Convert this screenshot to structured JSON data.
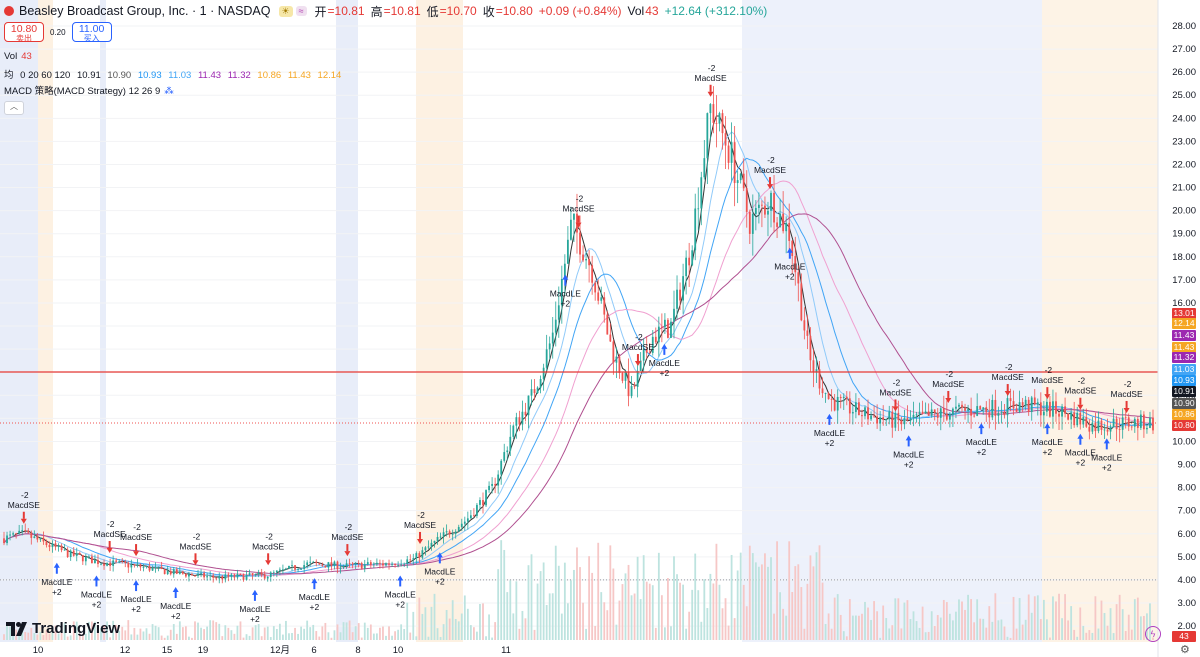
{
  "header": {
    "symbol": "Beasley Broadcast Group, Inc. · 1 · NASDAQ",
    "badge1": "☀",
    "badge2": "≈",
    "open_label": "开",
    "open": "=10.81",
    "high_label": "高",
    "high": "=10.81",
    "low_label": "低",
    "low": "=10.70",
    "close_label": "收",
    "close": "=10.80",
    "change": "+0.09 (+0.84%)",
    "vol_label": "Vol",
    "vol_value": "43",
    "vol_change": "+12.64 (+312.10%)"
  },
  "trade": {
    "sell_price": "10.80",
    "sell_label": "卖出",
    "spread": "0.20",
    "buy_price": "11.00",
    "buy_label": "买入"
  },
  "indicators": {
    "vol_label": "Vol",
    "vol_value": "43",
    "ma_label": "均",
    "ma_params": "0 20 60 120",
    "ma_values": [
      "10.91",
      "10.90",
      "10.93",
      "11.03",
      "11.43",
      "11.32",
      "10.86",
      "11.43",
      "12.14"
    ],
    "macd_label": "MACD 策略(MACD Strategy) 12 26 9"
  },
  "collapse_icon": "chevron-up-icon",
  "brand": "TradingView",
  "x_axis_labels": [
    "10",
    "12",
    "15",
    "19",
    "12月",
    "6",
    "8",
    "10",
    "11"
  ],
  "y_axis_labels": [
    "28.00",
    "27.00",
    "26.00",
    "25.00",
    "24.00",
    "23.00",
    "22.00",
    "21.00",
    "20.00",
    "19.00",
    "18.00",
    "17.00",
    "16.00",
    "15.00",
    "14.00",
    "13.00",
    "12.00",
    "11.00",
    "10.00",
    "9.00",
    "8.00",
    "7.00",
    "6.00",
    "5.00",
    "4.00",
    "3.00",
    "2.00"
  ],
  "price_tags": [
    {
      "text": "13.01",
      "color": "#e53935"
    },
    {
      "text": "12.14",
      "color": "#f5a623"
    },
    {
      "text": "11.43",
      "color": "#9c27b0"
    },
    {
      "text": "11.43",
      "color": "#f5a623"
    },
    {
      "text": "11.32",
      "color": "#9c27b0"
    },
    {
      "text": "11.03",
      "color": "#42a5f5"
    },
    {
      "text": "10.93",
      "color": "#2196f3"
    },
    {
      "text": "10.91",
      "color": "#131722"
    },
    {
      "text": "10.90",
      "color": "#555555"
    },
    {
      "text": "10.86",
      "color": "#f5a623"
    },
    {
      "text": "10.80",
      "color": "#e53935"
    }
  ],
  "volume_tag": "43",
  "signals": {
    "sell_text": "MacdSE",
    "sell_qty": "-2",
    "buy_text": "MacdLE",
    "buy_qty": "+2"
  },
  "colors": {
    "up": "#26a69a",
    "down": "#ef5350",
    "ma_dark": "#333333",
    "ma_light_blue": "#90caf9",
    "ma_blue": "#42a5f5",
    "ma_purple": "#b05090",
    "ma_pink": "#f0a0d0",
    "hline": "#e53935"
  },
  "chart_data": {
    "type": "candlestick",
    "y_range": [
      2,
      28
    ],
    "horizontal_line": 13.01,
    "last_price": 10.8,
    "close_path": [
      {
        "t": 0,
        "v": 5.8
      },
      {
        "t": 3,
        "v": 6.0
      },
      {
        "t": 6,
        "v": 5.6
      },
      {
        "t": 10,
        "v": 5.1
      },
      {
        "t": 14,
        "v": 4.8
      },
      {
        "t": 20,
        "v": 4.6
      },
      {
        "t": 26,
        "v": 4.3
      },
      {
        "t": 32,
        "v": 4.1
      },
      {
        "t": 40,
        "v": 4.2
      },
      {
        "t": 46,
        "v": 4.7
      },
      {
        "t": 52,
        "v": 4.6
      },
      {
        "t": 58,
        "v": 4.7
      },
      {
        "t": 62,
        "v": 4.9
      },
      {
        "t": 66,
        "v": 5.8
      },
      {
        "t": 70,
        "v": 6.6
      },
      {
        "t": 74,
        "v": 8.0
      },
      {
        "t": 77,
        "v": 10.5
      },
      {
        "t": 80,
        "v": 12.0
      },
      {
        "t": 83,
        "v": 14.5
      },
      {
        "t": 86,
        "v": 19.5
      },
      {
        "t": 89,
        "v": 17.5
      },
      {
        "t": 92,
        "v": 14.0
      },
      {
        "t": 95,
        "v": 12.0
      },
      {
        "t": 98,
        "v": 14.5
      },
      {
        "t": 101,
        "v": 15.0
      },
      {
        "t": 104,
        "v": 18.5
      },
      {
        "t": 107,
        "v": 24.5
      },
      {
        "t": 110,
        "v": 22.5
      },
      {
        "t": 113,
        "v": 19.5
      },
      {
        "t": 116,
        "v": 20.5
      },
      {
        "t": 119,
        "v": 19.0
      },
      {
        "t": 122,
        "v": 13.5
      },
      {
        "t": 125,
        "v": 11.8
      },
      {
        "t": 130,
        "v": 11.2
      },
      {
        "t": 136,
        "v": 10.8
      },
      {
        "t": 142,
        "v": 11.2
      },
      {
        "t": 148,
        "v": 11.4
      },
      {
        "t": 154,
        "v": 11.6
      },
      {
        "t": 160,
        "v": 11.3
      },
      {
        "t": 165,
        "v": 10.7
      },
      {
        "t": 170,
        "v": 10.8
      },
      {
        "t": 174,
        "v": 10.8
      }
    ]
  }
}
